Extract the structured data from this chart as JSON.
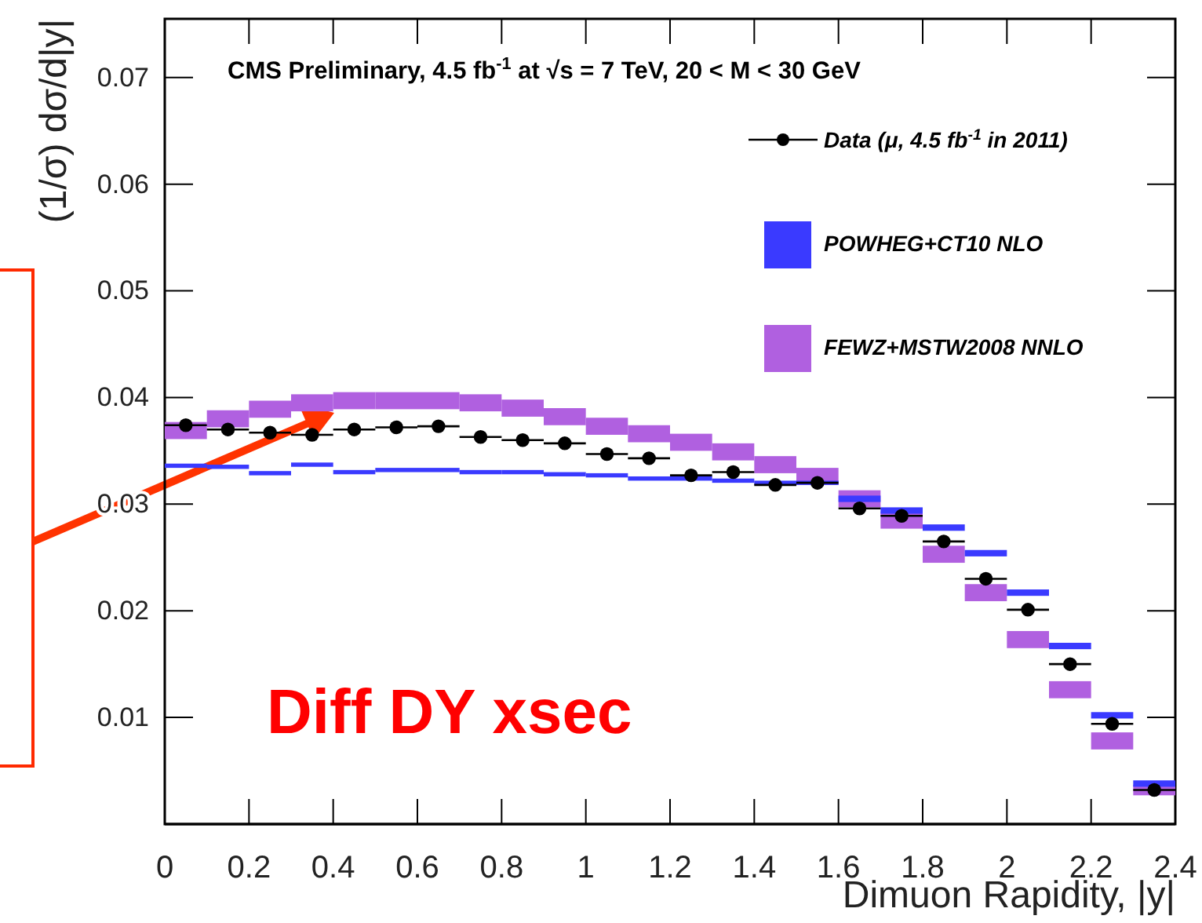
{
  "chart_data": {
    "type": "scatter",
    "title": "CMS Preliminary, 4.5 fb$^{-1}$ at √s = 7 TeV, 20 < M < 30 GeV",
    "xlabel": "Dimuon Rapidity, |y|",
    "ylabel": "(1/σ) dσ/d|y|",
    "annotations": [
      "Diff DY xsec"
    ],
    "x": [
      0.05,
      0.15,
      0.25,
      0.35,
      0.45,
      0.55,
      0.65,
      0.75,
      0.85,
      0.95,
      1.05,
      1.15,
      1.25,
      1.35,
      1.45,
      1.55,
      1.65,
      1.75,
      1.85,
      1.95,
      2.05,
      2.15,
      2.25,
      2.35
    ],
    "series": [
      {
        "name": "Data (μ, 4.5 fb$^{-1}$ in 2011)",
        "color": "#000000",
        "values": [
          0.0374,
          0.037,
          0.0367,
          0.0365,
          0.037,
          0.0372,
          0.0373,
          0.0363,
          0.036,
          0.0357,
          0.0347,
          0.0343,
          0.0327,
          0.033,
          0.0318,
          0.032,
          0.0296,
          0.0289,
          0.0265,
          0.023,
          0.0201,
          0.015,
          0.0094,
          0.0032
        ],
        "xerrors": [
          0.05,
          0.05,
          0.05,
          0.05,
          0.05,
          0.05,
          0.05,
          0.05,
          0.05,
          0.05,
          0.05,
          0.05,
          0.05,
          0.05,
          0.05,
          0.05,
          0.05,
          0.05,
          0.05,
          0.05,
          0.05,
          0.05,
          0.05,
          0.05
        ]
      },
      {
        "name": "POWHEG+CT10 NLO",
        "type": "bar",
        "color": "#3a3aff",
        "base": [
          0.0334,
          0.0333,
          0.0327,
          0.0335,
          0.0328,
          0.033,
          0.033,
          0.0328,
          0.0328,
          0.0326,
          0.0325,
          0.0322,
          0.0322,
          0.032,
          0.0318,
          0.0318,
          0.0302,
          0.0291,
          0.0275,
          0.0251,
          0.0214,
          0.0164,
          0.0099,
          0.0035
        ],
        "values": [
          0.0004,
          0.0004,
          0.0004,
          0.0004,
          0.0004,
          0.0004,
          0.0004,
          0.0004,
          0.0004,
          0.0004,
          0.0004,
          0.0004,
          0.0004,
          0.0004,
          0.0004,
          0.0004,
          0.0006,
          0.0006,
          0.0006,
          0.0006,
          0.0006,
          0.0006,
          0.0006,
          0.0006
        ]
      },
      {
        "name": "FEWZ+MSTW2008 NNLO",
        "type": "bar",
        "color": "#b060e0",
        "base": [
          0.0361,
          0.0372,
          0.0381,
          0.0387,
          0.0389,
          0.0389,
          0.0389,
          0.0387,
          0.0382,
          0.0374,
          0.0365,
          0.0358,
          0.035,
          0.0341,
          0.0329,
          0.0318,
          0.0297,
          0.0277,
          0.0245,
          0.0209,
          0.0165,
          0.0118,
          0.007,
          0.0027
        ],
        "values": [
          0.0016,
          0.0016,
          0.0016,
          0.0016,
          0.0016,
          0.0016,
          0.0016,
          0.0016,
          0.0016,
          0.0016,
          0.0016,
          0.0016,
          0.0016,
          0.0016,
          0.0016,
          0.0016,
          0.0016,
          0.0016,
          0.0016,
          0.0016,
          0.0016,
          0.0016,
          0.0016,
          0.001
        ]
      }
    ],
    "xlim": [
      0,
      2.4
    ],
    "xticks": [
      0,
      0.2,
      0.4,
      0.6,
      0.8,
      1,
      1.2,
      1.4,
      1.6,
      1.8,
      2,
      2.2,
      2.4
    ],
    "ylim": [
      0,
      0.0755
    ],
    "yticks": [
      0.01,
      0.02,
      0.03,
      0.04,
      0.05,
      0.06,
      0.07
    ],
    "legend": "top right",
    "marker": "circle",
    "grid": false
  }
}
